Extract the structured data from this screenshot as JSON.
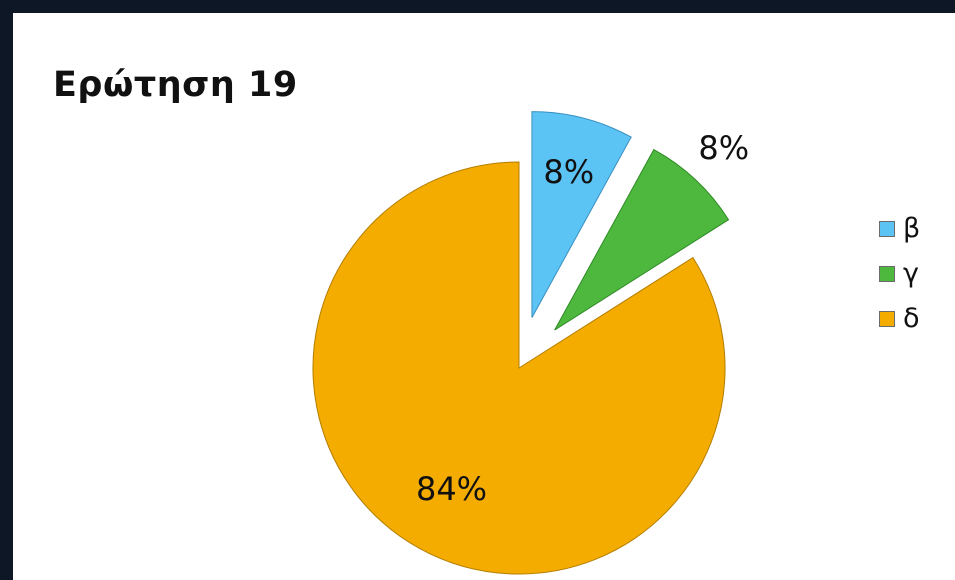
{
  "slide": {
    "title": "Ερώτηση 19"
  },
  "chart_data": {
    "type": "pie",
    "categories": [
      "β",
      "γ",
      "δ"
    ],
    "values": [
      8,
      8,
      84
    ],
    "data_labels": [
      "8%",
      "8%",
      "84%"
    ],
    "colors": [
      "#5bc4f5",
      "#4db83d",
      "#f5ac00"
    ],
    "title": "",
    "legend_position": "right",
    "exploded_slices": [
      "β",
      "γ"
    ]
  }
}
